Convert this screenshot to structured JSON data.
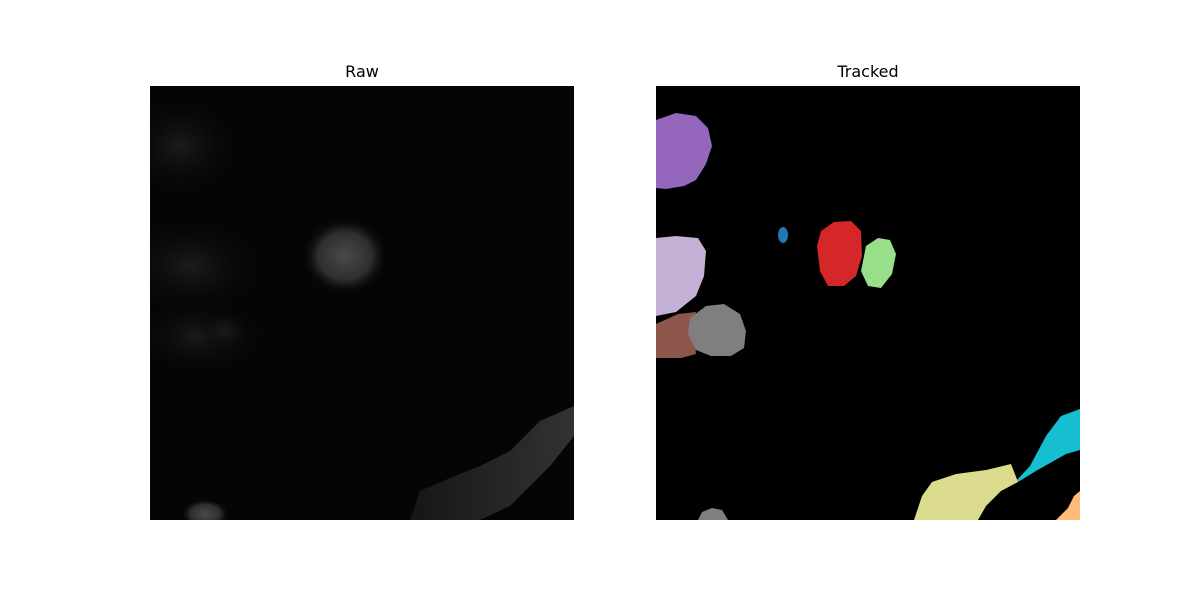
{
  "figure": {
    "panels": [
      {
        "title": "Raw"
      },
      {
        "title": "Tracked"
      }
    ]
  },
  "colors": {
    "background": "#000000",
    "raw_cells": "#3a3a3a",
    "track_purple": "#9467bd",
    "track_lavender": "#c5b0d5",
    "track_brown": "#8c564b",
    "track_gray": "#7f7f7f",
    "track_blue": "#1f77b4",
    "track_red": "#d62728",
    "track_green": "#98df8a",
    "track_cyan": "#17becf",
    "track_olive": "#dbdb8d",
    "track_orange": "#ffbb78"
  }
}
